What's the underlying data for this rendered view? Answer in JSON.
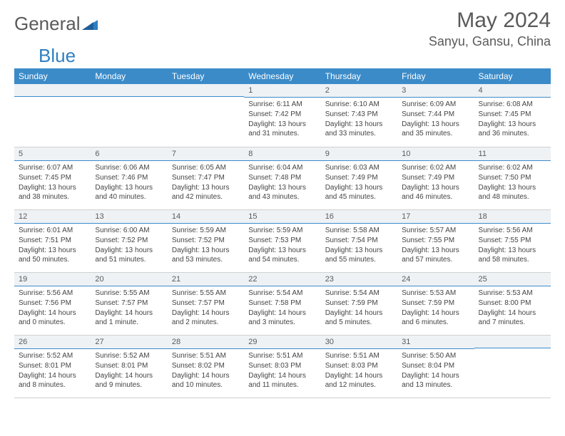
{
  "logo": {
    "text1": "General",
    "text2": "Blue",
    "accent": "#2f7fc2"
  },
  "title": "May 2024",
  "location": "Sanyu, Gansu, China",
  "header_bg": "#3b8bc9",
  "weekdays": [
    "Sunday",
    "Monday",
    "Tuesday",
    "Wednesday",
    "Thursday",
    "Friday",
    "Saturday"
  ],
  "weeks": [
    [
      null,
      null,
      null,
      {
        "n": "1",
        "sr": "6:11 AM",
        "ss": "7:42 PM",
        "dl": "13 hours and 31 minutes."
      },
      {
        "n": "2",
        "sr": "6:10 AM",
        "ss": "7:43 PM",
        "dl": "13 hours and 33 minutes."
      },
      {
        "n": "3",
        "sr": "6:09 AM",
        "ss": "7:44 PM",
        "dl": "13 hours and 35 minutes."
      },
      {
        "n": "4",
        "sr": "6:08 AM",
        "ss": "7:45 PM",
        "dl": "13 hours and 36 minutes."
      }
    ],
    [
      {
        "n": "5",
        "sr": "6:07 AM",
        "ss": "7:45 PM",
        "dl": "13 hours and 38 minutes."
      },
      {
        "n": "6",
        "sr": "6:06 AM",
        "ss": "7:46 PM",
        "dl": "13 hours and 40 minutes."
      },
      {
        "n": "7",
        "sr": "6:05 AM",
        "ss": "7:47 PM",
        "dl": "13 hours and 42 minutes."
      },
      {
        "n": "8",
        "sr": "6:04 AM",
        "ss": "7:48 PM",
        "dl": "13 hours and 43 minutes."
      },
      {
        "n": "9",
        "sr": "6:03 AM",
        "ss": "7:49 PM",
        "dl": "13 hours and 45 minutes."
      },
      {
        "n": "10",
        "sr": "6:02 AM",
        "ss": "7:49 PM",
        "dl": "13 hours and 46 minutes."
      },
      {
        "n": "11",
        "sr": "6:02 AM",
        "ss": "7:50 PM",
        "dl": "13 hours and 48 minutes."
      }
    ],
    [
      {
        "n": "12",
        "sr": "6:01 AM",
        "ss": "7:51 PM",
        "dl": "13 hours and 50 minutes."
      },
      {
        "n": "13",
        "sr": "6:00 AM",
        "ss": "7:52 PM",
        "dl": "13 hours and 51 minutes."
      },
      {
        "n": "14",
        "sr": "5:59 AM",
        "ss": "7:52 PM",
        "dl": "13 hours and 53 minutes."
      },
      {
        "n": "15",
        "sr": "5:59 AM",
        "ss": "7:53 PM",
        "dl": "13 hours and 54 minutes."
      },
      {
        "n": "16",
        "sr": "5:58 AM",
        "ss": "7:54 PM",
        "dl": "13 hours and 55 minutes."
      },
      {
        "n": "17",
        "sr": "5:57 AM",
        "ss": "7:55 PM",
        "dl": "13 hours and 57 minutes."
      },
      {
        "n": "18",
        "sr": "5:56 AM",
        "ss": "7:55 PM",
        "dl": "13 hours and 58 minutes."
      }
    ],
    [
      {
        "n": "19",
        "sr": "5:56 AM",
        "ss": "7:56 PM",
        "dl": "14 hours and 0 minutes."
      },
      {
        "n": "20",
        "sr": "5:55 AM",
        "ss": "7:57 PM",
        "dl": "14 hours and 1 minute."
      },
      {
        "n": "21",
        "sr": "5:55 AM",
        "ss": "7:57 PM",
        "dl": "14 hours and 2 minutes."
      },
      {
        "n": "22",
        "sr": "5:54 AM",
        "ss": "7:58 PM",
        "dl": "14 hours and 3 minutes."
      },
      {
        "n": "23",
        "sr": "5:54 AM",
        "ss": "7:59 PM",
        "dl": "14 hours and 5 minutes."
      },
      {
        "n": "24",
        "sr": "5:53 AM",
        "ss": "7:59 PM",
        "dl": "14 hours and 6 minutes."
      },
      {
        "n": "25",
        "sr": "5:53 AM",
        "ss": "8:00 PM",
        "dl": "14 hours and 7 minutes."
      }
    ],
    [
      {
        "n": "26",
        "sr": "5:52 AM",
        "ss": "8:01 PM",
        "dl": "14 hours and 8 minutes."
      },
      {
        "n": "27",
        "sr": "5:52 AM",
        "ss": "8:01 PM",
        "dl": "14 hours and 9 minutes."
      },
      {
        "n": "28",
        "sr": "5:51 AM",
        "ss": "8:02 PM",
        "dl": "14 hours and 10 minutes."
      },
      {
        "n": "29",
        "sr": "5:51 AM",
        "ss": "8:03 PM",
        "dl": "14 hours and 11 minutes."
      },
      {
        "n": "30",
        "sr": "5:51 AM",
        "ss": "8:03 PM",
        "dl": "14 hours and 12 minutes."
      },
      {
        "n": "31",
        "sr": "5:50 AM",
        "ss": "8:04 PM",
        "dl": "14 hours and 13 minutes."
      },
      null
    ]
  ],
  "labels": {
    "sunrise": "Sunrise: ",
    "sunset": "Sunset: ",
    "daylight": "Daylight: "
  }
}
